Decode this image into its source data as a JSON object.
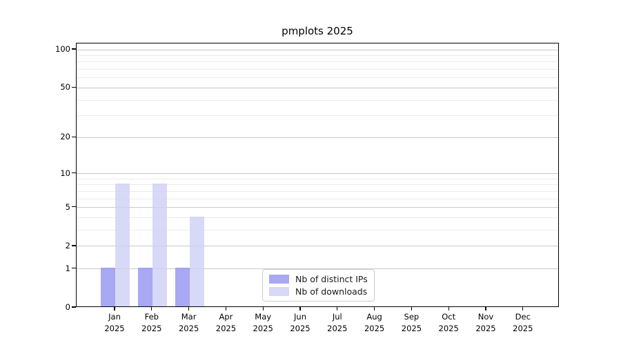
{
  "chart_data": {
    "type": "bar",
    "title": "pmplots 2025",
    "year_label": "2025",
    "categories": [
      "Jan",
      "Feb",
      "Mar",
      "Apr",
      "May",
      "Jun",
      "Jul",
      "Aug",
      "Sep",
      "Oct",
      "Nov",
      "Dec"
    ],
    "series": [
      {
        "name": "Nb of distinct IPs",
        "color": "#a8a8f3",
        "base_color": "#9595f0",
        "values": [
          1,
          1,
          1,
          0,
          0,
          0,
          0,
          0,
          0,
          0,
          0,
          0
        ]
      },
      {
        "name": "Nb of downloads",
        "color": "#d8d8f7",
        "base_color": "#cfcff5",
        "values": [
          8,
          8,
          4,
          0,
          0,
          0,
          0,
          0,
          0,
          0,
          0,
          0
        ]
      }
    ],
    "y_scale": "log1p",
    "y_ticks": [
      0,
      1,
      2,
      5,
      10,
      20,
      50,
      100
    ],
    "y_minor_ticks": [
      3,
      4,
      6,
      7,
      8,
      9,
      30,
      40,
      60,
      70,
      80,
      90
    ],
    "ylim": [
      0,
      112
    ],
    "xlabel": "",
    "ylabel": "",
    "grid": "horizontal",
    "legend": {
      "position": "lower center"
    }
  },
  "colors": {
    "background": "#ffffff",
    "frame": "#000000",
    "major_grid": "#c9c9c9",
    "minor_grid": "#ececec",
    "text": "#000000",
    "legend_border": "#cccccc"
  }
}
